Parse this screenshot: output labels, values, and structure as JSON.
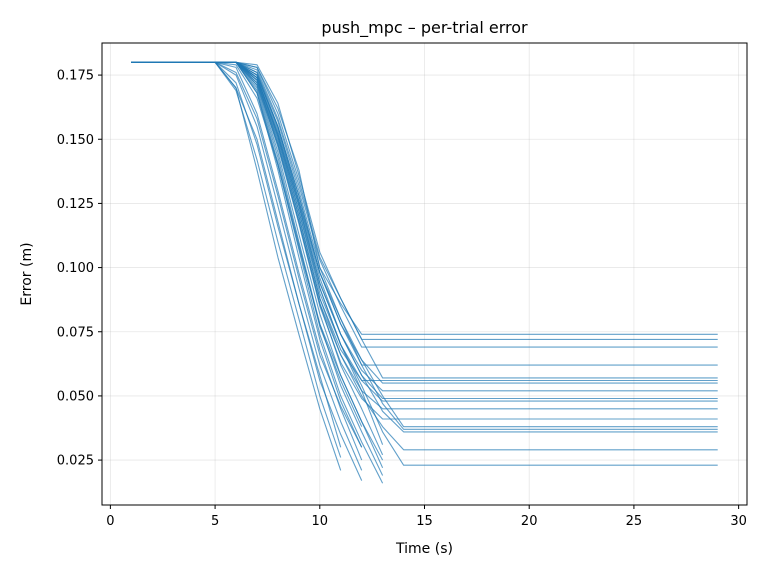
{
  "chart_data": {
    "type": "line",
    "title": "push_mpc – per-trial error",
    "xlabel": "Time (s)",
    "ylabel": "Error (m)",
    "xlim": [
      -0.4,
      30.4
    ],
    "ylim": [
      0.0075,
      0.1875
    ],
    "xticks": [
      0,
      5,
      10,
      15,
      20,
      25,
      30
    ],
    "xtick_labels": [
      "0",
      "5",
      "10",
      "15",
      "20",
      "25",
      "30"
    ],
    "yticks": [
      0.025,
      0.05,
      0.075,
      0.1,
      0.125,
      0.15,
      0.175
    ],
    "ytick_labels": [
      "0.025",
      "0.050",
      "0.075",
      "0.100",
      "0.125",
      "0.150",
      "0.175"
    ],
    "grid": true,
    "color": "#1f77b4",
    "series": [
      {
        "x": [
          1,
          5,
          6,
          7,
          8,
          9,
          10,
          11,
          12,
          29
        ],
        "y": [
          0.18,
          0.18,
          0.18,
          0.178,
          0.162,
          0.138,
          0.1,
          0.086,
          0.074,
          0.074
        ]
      },
      {
        "x": [
          1,
          5,
          6,
          7,
          8,
          9,
          10,
          11,
          12,
          29
        ],
        "y": [
          0.18,
          0.18,
          0.18,
          0.179,
          0.164,
          0.136,
          0.106,
          0.088,
          0.072,
          0.072
        ]
      },
      {
        "x": [
          1,
          5,
          6,
          7,
          8,
          9,
          10,
          11,
          12,
          29
        ],
        "y": [
          0.18,
          0.18,
          0.18,
          0.177,
          0.158,
          0.132,
          0.103,
          0.085,
          0.069,
          0.069
        ]
      },
      {
        "x": [
          1,
          5,
          6,
          7,
          8,
          9,
          10,
          11,
          12,
          29
        ],
        "y": [
          0.18,
          0.18,
          0.18,
          0.175,
          0.155,
          0.128,
          0.098,
          0.08,
          0.062,
          0.062
        ]
      },
      {
        "x": [
          1,
          5,
          6,
          7,
          8,
          9,
          10,
          11,
          12,
          13,
          29
        ],
        "y": [
          0.18,
          0.18,
          0.18,
          0.178,
          0.16,
          0.134,
          0.104,
          0.088,
          0.072,
          0.057,
          0.057
        ]
      },
      {
        "x": [
          1,
          5,
          6,
          7,
          8,
          9,
          10,
          11,
          12,
          13,
          29
        ],
        "y": [
          0.18,
          0.18,
          0.18,
          0.176,
          0.155,
          0.126,
          0.098,
          0.078,
          0.064,
          0.055,
          0.055
        ]
      },
      {
        "x": [
          1,
          5,
          6,
          7,
          8,
          9,
          10,
          11,
          12,
          13,
          29
        ],
        "y": [
          0.18,
          0.18,
          0.18,
          0.174,
          0.152,
          0.124,
          0.094,
          0.074,
          0.06,
          0.052,
          0.052
        ]
      },
      {
        "x": [
          1,
          5,
          6,
          7,
          8,
          9,
          10,
          11,
          12,
          29
        ],
        "y": [
          0.18,
          0.18,
          0.18,
          0.172,
          0.15,
          0.12,
          0.088,
          0.068,
          0.056,
          0.056
        ]
      },
      {
        "x": [
          1,
          5,
          6,
          7,
          8,
          9,
          10,
          11,
          12,
          13,
          29
        ],
        "y": [
          0.18,
          0.18,
          0.18,
          0.175,
          0.154,
          0.126,
          0.096,
          0.074,
          0.058,
          0.049,
          0.049
        ]
      },
      {
        "x": [
          1,
          5,
          6,
          7,
          8,
          9,
          10,
          11,
          12,
          13,
          29
        ],
        "y": [
          0.18,
          0.18,
          0.18,
          0.174,
          0.151,
          0.122,
          0.092,
          0.07,
          0.056,
          0.048,
          0.048
        ]
      },
      {
        "x": [
          1,
          5,
          6,
          7,
          8,
          9,
          10,
          11,
          12,
          13,
          29
        ],
        "y": [
          0.18,
          0.18,
          0.18,
          0.173,
          0.149,
          0.12,
          0.088,
          0.066,
          0.052,
          0.045,
          0.045
        ]
      },
      {
        "x": [
          1,
          5,
          6,
          7,
          8,
          9,
          10,
          11,
          12,
          13,
          29
        ],
        "y": [
          0.18,
          0.18,
          0.18,
          0.172,
          0.147,
          0.117,
          0.085,
          0.063,
          0.049,
          0.041,
          0.041
        ]
      },
      {
        "x": [
          1,
          5,
          6,
          7,
          8,
          9,
          10,
          11,
          12,
          13,
          14,
          29
        ],
        "y": [
          0.18,
          0.18,
          0.18,
          0.176,
          0.157,
          0.13,
          0.1,
          0.08,
          0.064,
          0.05,
          0.038,
          0.038
        ]
      },
      {
        "x": [
          1,
          5,
          6,
          7,
          8,
          9,
          10,
          11,
          12,
          13,
          14,
          29
        ],
        "y": [
          0.18,
          0.18,
          0.18,
          0.175,
          0.155,
          0.128,
          0.098,
          0.078,
          0.062,
          0.047,
          0.037,
          0.037
        ]
      },
      {
        "x": [
          1,
          5,
          6,
          7,
          8,
          9,
          10,
          11,
          12,
          13,
          14,
          29
        ],
        "y": [
          0.18,
          0.18,
          0.18,
          0.174,
          0.153,
          0.125,
          0.094,
          0.074,
          0.058,
          0.044,
          0.036,
          0.036
        ]
      },
      {
        "x": [
          1,
          5,
          6,
          7,
          8,
          9,
          10,
          11,
          12,
          13,
          14,
          29
        ],
        "y": [
          0.18,
          0.18,
          0.18,
          0.171,
          0.148,
          0.118,
          0.086,
          0.066,
          0.05,
          0.038,
          0.029,
          0.029
        ]
      },
      {
        "x": [
          1,
          5,
          6,
          7,
          8,
          9,
          10,
          11,
          12,
          13,
          14,
          29
        ],
        "y": [
          0.18,
          0.18,
          0.18,
          0.173,
          0.151,
          0.122,
          0.09,
          0.07,
          0.054,
          0.036,
          0.023,
          0.023
        ]
      },
      {
        "x": [
          1,
          5,
          6,
          7,
          8,
          9,
          10,
          11,
          12,
          13
        ],
        "y": [
          0.18,
          0.18,
          0.18,
          0.174,
          0.152,
          0.124,
          0.092,
          0.07,
          0.052,
          0.031
        ]
      },
      {
        "x": [
          1,
          5,
          6,
          7,
          8,
          9,
          10,
          11,
          12,
          13
        ],
        "y": [
          0.18,
          0.18,
          0.18,
          0.173,
          0.148,
          0.118,
          0.086,
          0.062,
          0.045,
          0.027
        ]
      },
      {
        "x": [
          1,
          5,
          6,
          7,
          8,
          9,
          10,
          11,
          12,
          13
        ],
        "y": [
          0.18,
          0.18,
          0.18,
          0.171,
          0.145,
          0.113,
          0.082,
          0.058,
          0.04,
          0.022
        ]
      },
      {
        "x": [
          1,
          5,
          6,
          7,
          8,
          9,
          10,
          11,
          12,
          13
        ],
        "y": [
          0.18,
          0.18,
          0.18,
          0.17,
          0.143,
          0.11,
          0.078,
          0.054,
          0.036,
          0.019
        ]
      },
      {
        "x": [
          1,
          5,
          6,
          7,
          8,
          9,
          10,
          11,
          12,
          13
        ],
        "y": [
          0.18,
          0.18,
          0.18,
          0.168,
          0.14,
          0.107,
          0.074,
          0.05,
          0.032,
          0.016
        ]
      },
      {
        "x": [
          1,
          5,
          6,
          7,
          8,
          9,
          10,
          11,
          12
        ],
        "y": [
          0.18,
          0.18,
          0.18,
          0.168,
          0.138,
          0.104,
          0.072,
          0.048,
          0.03
        ]
      },
      {
        "x": [
          1,
          5,
          6,
          7,
          8,
          9,
          10,
          11,
          12
        ],
        "y": [
          0.18,
          0.18,
          0.178,
          0.16,
          0.13,
          0.098,
          0.068,
          0.045,
          0.025
        ]
      },
      {
        "x": [
          1,
          5,
          6,
          7,
          8,
          9,
          10,
          11,
          12
        ],
        "y": [
          0.18,
          0.18,
          0.175,
          0.155,
          0.124,
          0.092,
          0.062,
          0.04,
          0.021
        ]
      },
      {
        "x": [
          1,
          5,
          6,
          7,
          8,
          9,
          10,
          11,
          12
        ],
        "y": [
          0.18,
          0.18,
          0.17,
          0.15,
          0.118,
          0.086,
          0.056,
          0.035,
          0.017
        ]
      },
      {
        "x": [
          1,
          5,
          6,
          7,
          8,
          9,
          10,
          11
        ],
        "y": [
          0.18,
          0.18,
          0.169,
          0.142,
          0.11,
          0.08,
          0.05,
          0.026
        ]
      },
      {
        "x": [
          1,
          5,
          6,
          7,
          8,
          9,
          10,
          11
        ],
        "y": [
          0.18,
          0.18,
          0.17,
          0.138,
          0.104,
          0.074,
          0.045,
          0.021
        ]
      },
      {
        "x": [
          1,
          5,
          6,
          7,
          8,
          9,
          10,
          11
        ],
        "y": [
          0.18,
          0.18,
          0.172,
          0.148,
          0.116,
          0.086,
          0.058,
          0.03
        ]
      },
      {
        "x": [
          1,
          5,
          6,
          7,
          8,
          9,
          10,
          11,
          12
        ],
        "y": [
          0.18,
          0.18,
          0.176,
          0.158,
          0.128,
          0.096,
          0.066,
          0.046,
          0.03
        ]
      },
      {
        "x": [
          1,
          5,
          6,
          7,
          8,
          9,
          10,
          11,
          12,
          13
        ],
        "y": [
          0.18,
          0.18,
          0.179,
          0.166,
          0.14,
          0.108,
          0.078,
          0.058,
          0.04,
          0.025
        ]
      },
      {
        "x": [
          1,
          5,
          6,
          7,
          8,
          9,
          10,
          11,
          12
        ],
        "y": [
          0.18,
          0.18,
          0.18,
          0.169,
          0.141,
          0.109,
          0.077,
          0.056,
          0.038
        ]
      }
    ]
  }
}
